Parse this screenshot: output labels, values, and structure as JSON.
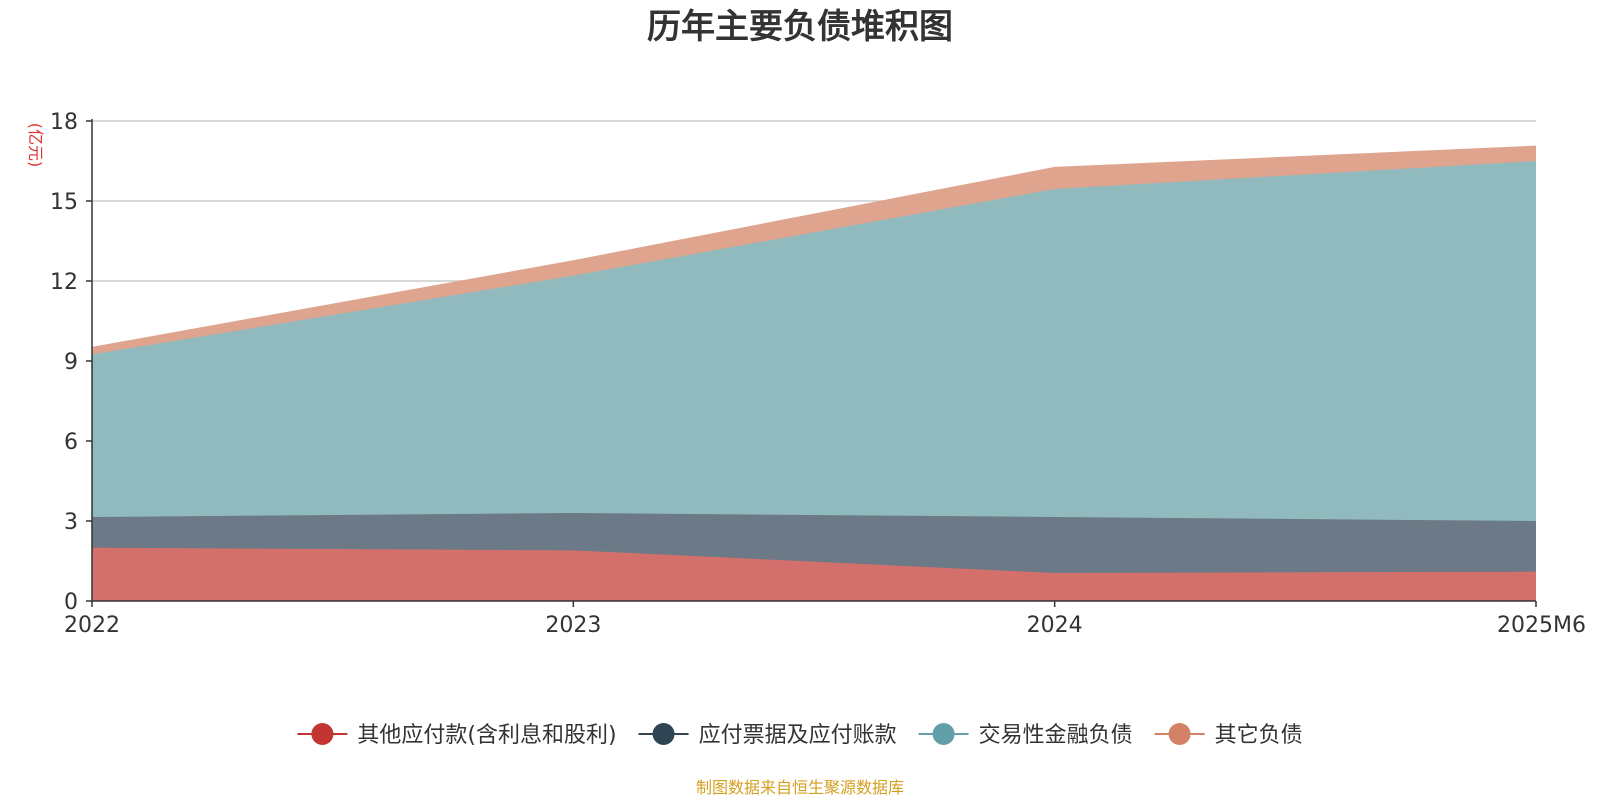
{
  "chart_data": {
    "type": "area",
    "stacked": true,
    "title": "历年主要负债堆积图",
    "unit": "(亿元)",
    "categories": [
      "2022",
      "2023",
      "2024",
      "2025M6"
    ],
    "ylim": [
      0,
      18
    ],
    "yticks": [
      "0",
      "3",
      "6",
      "9",
      "12",
      "15",
      "18"
    ],
    "grid": true,
    "legend_position": "bottom",
    "series": [
      {
        "name": "其他应付款(含利息和股利)",
        "color": "#c23531",
        "fill": "#d4706c",
        "values": [
          2.0,
          1.9,
          1.05,
          1.1
        ]
      },
      {
        "name": "应付票据及应付账款",
        "color": "#2f4554",
        "fill": "#6b7a86",
        "values": [
          1.15,
          1.4,
          2.1,
          1.9
        ]
      },
      {
        "name": "交易性金融负债",
        "color": "#61a0a8",
        "fill": "#91babf",
        "values": [
          6.1,
          8.9,
          12.3,
          13.5
        ]
      },
      {
        "name": "其它负债",
        "color": "#d48265",
        "fill": "#dfa48e",
        "values": [
          0.25,
          0.55,
          0.8,
          0.55
        ]
      }
    ]
  },
  "footer": {
    "source": "制图数据来自恒生聚源数据库"
  }
}
